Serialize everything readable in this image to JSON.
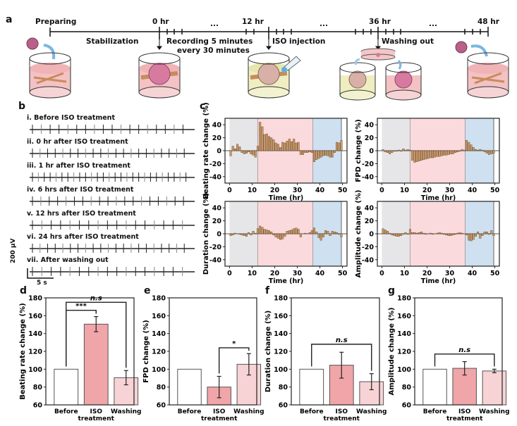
{
  "panels": {
    "a": "a",
    "b": "b",
    "c": "c",
    "d": "d",
    "e": "e",
    "f": "f",
    "g": "g"
  },
  "timeline": {
    "start_label": "Preparing",
    "markers": [
      "0 hr",
      "12 hr",
      "36 hr",
      "48 hr"
    ],
    "ellipsis": "...",
    "stabilization": "Stabilization",
    "recording_line1": "Recording 5 minutes",
    "recording_line2": "every 30 minutes",
    "iso_injection": "ISO injection",
    "washing_out": "Washing out"
  },
  "traces": {
    "items": [
      {
        "label": "i. Before ISO treatment",
        "beats": 18
      },
      {
        "label": "ii. 0 hr after ISO treatment",
        "beats": 21
      },
      {
        "label": "iii. 1 hr after ISO treatment",
        "beats": 27
      },
      {
        "label": "iv. 6 hrs after ISO treatment",
        "beats": 19
      },
      {
        "label": "v. 12 hrs after ISO treatment",
        "beats": 17
      },
      {
        "label": "vi. 24 hrs after ISO treatment",
        "beats": 21
      },
      {
        "label": "vii. After washing out",
        "beats": 17
      }
    ],
    "scale_y": "200 μV",
    "scale_x": "5 s"
  },
  "colors": {
    "pre_region": "#e6e6e8",
    "iso_region": "#fadadd",
    "wash_region": "#cfe0f0",
    "bar_fill": "#c89a6a",
    "bar_edge": "#5a3a1a",
    "before_bar": "#ffffff",
    "iso_bar": "#f0a5a8",
    "wash_bar": "#f7d3d5"
  },
  "chart_data": [
    {
      "id": "c1",
      "type": "bar",
      "title": "",
      "xlabel": "Time (hr)",
      "ylabel": "Beating rate change (%)",
      "xlim": [
        -2,
        52
      ],
      "ylim": [
        -50,
        50
      ],
      "xticks": [
        0,
        10,
        20,
        30,
        40,
        50
      ],
      "yticks": [
        -40,
        -20,
        0,
        20,
        40
      ],
      "regions": [
        {
          "name": "before",
          "from": 0,
          "to": 12.5
        },
        {
          "name": "ISO",
          "from": 12.5,
          "to": 37
        },
        {
          "name": "washing",
          "from": 37,
          "to": 49.5
        }
      ],
      "x": [
        0,
        1,
        2,
        3,
        4,
        5,
        6,
        7,
        8,
        9,
        10,
        11,
        12,
        13,
        14,
        15,
        16,
        17,
        18,
        19,
        20,
        21,
        22,
        23,
        24,
        25,
        26,
        27,
        28,
        29,
        30,
        31,
        32,
        33,
        34,
        35,
        36,
        37,
        38,
        39,
        40,
        41,
        42,
        43,
        44,
        45,
        46,
        47,
        48,
        49
      ],
      "values": [
        -8,
        7,
        3,
        10,
        6,
        -3,
        -5,
        -4,
        -2,
        -5,
        -7,
        -10,
        7,
        44,
        37,
        25,
        26,
        22,
        20,
        17,
        12,
        10,
        5,
        13,
        12,
        15,
        18,
        14,
        18,
        12,
        13,
        -6,
        -6,
        -3,
        -3,
        -2,
        -3,
        -17,
        -14,
        -12,
        -10,
        -8,
        -7,
        -8,
        -10,
        -10,
        -3,
        13,
        12,
        16
      ]
    },
    {
      "id": "c2",
      "type": "bar",
      "title": "",
      "xlabel": "Time (hr)",
      "ylabel": "FPD change (%)",
      "xlim": [
        -2,
        52
      ],
      "ylim": [
        -50,
        50
      ],
      "xticks": [
        0,
        10,
        20,
        30,
        40,
        50
      ],
      "yticks": [
        -40,
        -20,
        0,
        20,
        40
      ],
      "regions": [
        {
          "name": "before",
          "from": 0,
          "to": 12.5
        },
        {
          "name": "ISO",
          "from": 12.5,
          "to": 37
        },
        {
          "name": "washing",
          "from": 37,
          "to": 49.5
        }
      ],
      "x": [
        0,
        1,
        2,
        3,
        4,
        5,
        6,
        7,
        8,
        9,
        10,
        11,
        12,
        13,
        14,
        15,
        16,
        17,
        18,
        19,
        20,
        21,
        22,
        23,
        24,
        25,
        26,
        27,
        28,
        29,
        30,
        31,
        32,
        33,
        34,
        35,
        36,
        37,
        38,
        39,
        40,
        41,
        42,
        43,
        44,
        45,
        46,
        47,
        48,
        49
      ],
      "values": [
        2,
        -2,
        -3,
        -5,
        -3,
        -1,
        -1,
        1,
        -1,
        3,
        1,
        2,
        1,
        -15,
        -18,
        -17,
        -16,
        -15,
        -14,
        -13,
        -12,
        -11,
        -11,
        -10,
        -9,
        -9,
        -8,
        -7,
        -7,
        -6,
        -5,
        -5,
        -3,
        -2,
        -1,
        2,
        1,
        16,
        13,
        9,
        5,
        2,
        1,
        2,
        1,
        -2,
        -4,
        -6,
        -5,
        -4
      ]
    },
    {
      "id": "c3",
      "type": "bar",
      "title": "",
      "xlabel": "Time (hr)",
      "ylabel": "Duration change (%)",
      "xlim": [
        -2,
        52
      ],
      "ylim": [
        -50,
        50
      ],
      "xticks": [
        0,
        10,
        20,
        30,
        40,
        50
      ],
      "yticks": [
        -40,
        -20,
        0,
        20,
        40
      ],
      "regions": [
        {
          "name": "before",
          "from": 0,
          "to": 12.5
        },
        {
          "name": "ISO",
          "from": 12.5,
          "to": 37
        },
        {
          "name": "washing",
          "from": 37,
          "to": 49.5
        }
      ],
      "x": [
        0,
        1,
        2,
        3,
        4,
        5,
        6,
        7,
        8,
        9,
        10,
        11,
        12,
        13,
        14,
        15,
        16,
        17,
        18,
        19,
        20,
        21,
        22,
        23,
        24,
        25,
        26,
        27,
        28,
        29,
        30,
        31,
        32,
        33,
        34,
        35,
        36,
        37,
        38,
        39,
        40,
        41,
        42,
        43,
        44,
        45,
        46,
        47,
        48,
        49
      ],
      "values": [
        -3,
        -2,
        1,
        0,
        -1,
        -2,
        -3,
        -4,
        2,
        -2,
        4,
        1,
        8,
        12,
        10,
        7,
        6,
        5,
        3,
        -2,
        -5,
        -7,
        -9,
        -8,
        -4,
        4,
        5,
        6,
        8,
        9,
        7,
        -5,
        0,
        1,
        0,
        2,
        5,
        9,
        3,
        -6,
        -10,
        -5,
        5,
        4,
        -3,
        4,
        3,
        2,
        -1,
        -5
      ]
    },
    {
      "id": "c4",
      "type": "bar",
      "title": "",
      "xlabel": "Time (hr)",
      "ylabel": "Amplitude change (%)",
      "xlim": [
        -2,
        52
      ],
      "ylim": [
        -50,
        50
      ],
      "xticks": [
        0,
        10,
        20,
        30,
        40,
        50
      ],
      "yticks": [
        -40,
        -20,
        0,
        20,
        40
      ],
      "regions": [
        {
          "name": "before",
          "from": 0,
          "to": 12.5
        },
        {
          "name": "ISO",
          "from": 12.5,
          "to": 37
        },
        {
          "name": "washing",
          "from": 37,
          "to": 49.5
        }
      ],
      "x": [
        0,
        1,
        2,
        3,
        4,
        5,
        6,
        7,
        8,
        9,
        10,
        11,
        12,
        13,
        14,
        15,
        16,
        17,
        18,
        19,
        20,
        21,
        22,
        23,
        24,
        25,
        26,
        27,
        28,
        29,
        30,
        31,
        32,
        33,
        34,
        35,
        36,
        37,
        38,
        39,
        40,
        41,
        42,
        43,
        44,
        45,
        46,
        47,
        48,
        49
      ],
      "values": [
        8,
        6,
        4,
        1,
        -2,
        -3,
        -4,
        -4,
        -3,
        -1,
        2,
        -1,
        7,
        2,
        2,
        1,
        2,
        3,
        1,
        -1,
        0,
        1,
        -1,
        0,
        1,
        2,
        1,
        -1,
        -2,
        -3,
        -3,
        -2,
        -1,
        1,
        2,
        1,
        0,
        -2,
        -10,
        -11,
        -9,
        -4,
        3,
        -7,
        -3,
        3,
        3,
        -1,
        5,
        -3
      ]
    },
    {
      "id": "d",
      "type": "bar",
      "xlabel": "",
      "ylabel": "Beating rate change (%)",
      "ylim": [
        60,
        180
      ],
      "yticks": [
        60,
        80,
        100,
        120,
        140,
        160,
        180
      ],
      "categories": [
        "Before",
        "ISO treatment",
        "Washing"
      ],
      "category_lines": [
        [
          "Before"
        ],
        [
          "ISO",
          "treatment"
        ],
        [
          "Washing"
        ]
      ],
      "values": [
        100,
        150.5,
        90.5
      ],
      "errors": [
        0,
        8.5,
        8
      ],
      "significance": [
        {
          "from": 0,
          "to": 1,
          "label": "***",
          "level": 1
        },
        {
          "from": 0,
          "to": 2,
          "label": "n.s",
          "level": 2
        }
      ]
    },
    {
      "id": "e",
      "type": "bar",
      "xlabel": "",
      "ylabel": "FPD change (%)",
      "ylim": [
        60,
        180
      ],
      "yticks": [
        60,
        80,
        100,
        120,
        140,
        160,
        180
      ],
      "categories": [
        "Before",
        "ISO treatment",
        "Washing"
      ],
      "category_lines": [
        [
          "Before"
        ],
        [
          "ISO",
          "treatment"
        ],
        [
          "Washing"
        ]
      ],
      "values": [
        100,
        80,
        105.5
      ],
      "errors": [
        0,
        12,
        12
      ],
      "significance": [
        {
          "from": 1,
          "to": 2,
          "label": "*",
          "level": 1
        }
      ]
    },
    {
      "id": "f",
      "type": "bar",
      "xlabel": "",
      "ylabel": "Duration change (%)",
      "ylim": [
        60,
        180
      ],
      "yticks": [
        60,
        80,
        100,
        120,
        140,
        160,
        180
      ],
      "categories": [
        "Before",
        "ISO treatment",
        "Washing"
      ],
      "category_lines": [
        [
          "Before"
        ],
        [
          "ISO",
          "treatment"
        ],
        [
          "Washing"
        ]
      ],
      "values": [
        100,
        104.5,
        86
      ],
      "errors": [
        0,
        14.5,
        9
      ],
      "significance": [
        {
          "from": 0,
          "to": 2,
          "label": "n.s",
          "level": 1
        }
      ]
    },
    {
      "id": "g",
      "type": "bar",
      "xlabel": "",
      "ylabel": "Amplitude change (%)",
      "ylim": [
        60,
        180
      ],
      "yticks": [
        60,
        80,
        100,
        120,
        140,
        160,
        180
      ],
      "categories": [
        "Before",
        "ISO treatment",
        "Washing"
      ],
      "category_lines": [
        [
          "Before"
        ],
        [
          "ISO",
          "treatment"
        ],
        [
          "Washing"
        ]
      ],
      "values": [
        100,
        101,
        98
      ],
      "errors": [
        0,
        7.5,
        2
      ],
      "significance": [
        {
          "from": 0,
          "to": 2,
          "label": "n.s",
          "level": 1
        }
      ]
    }
  ]
}
